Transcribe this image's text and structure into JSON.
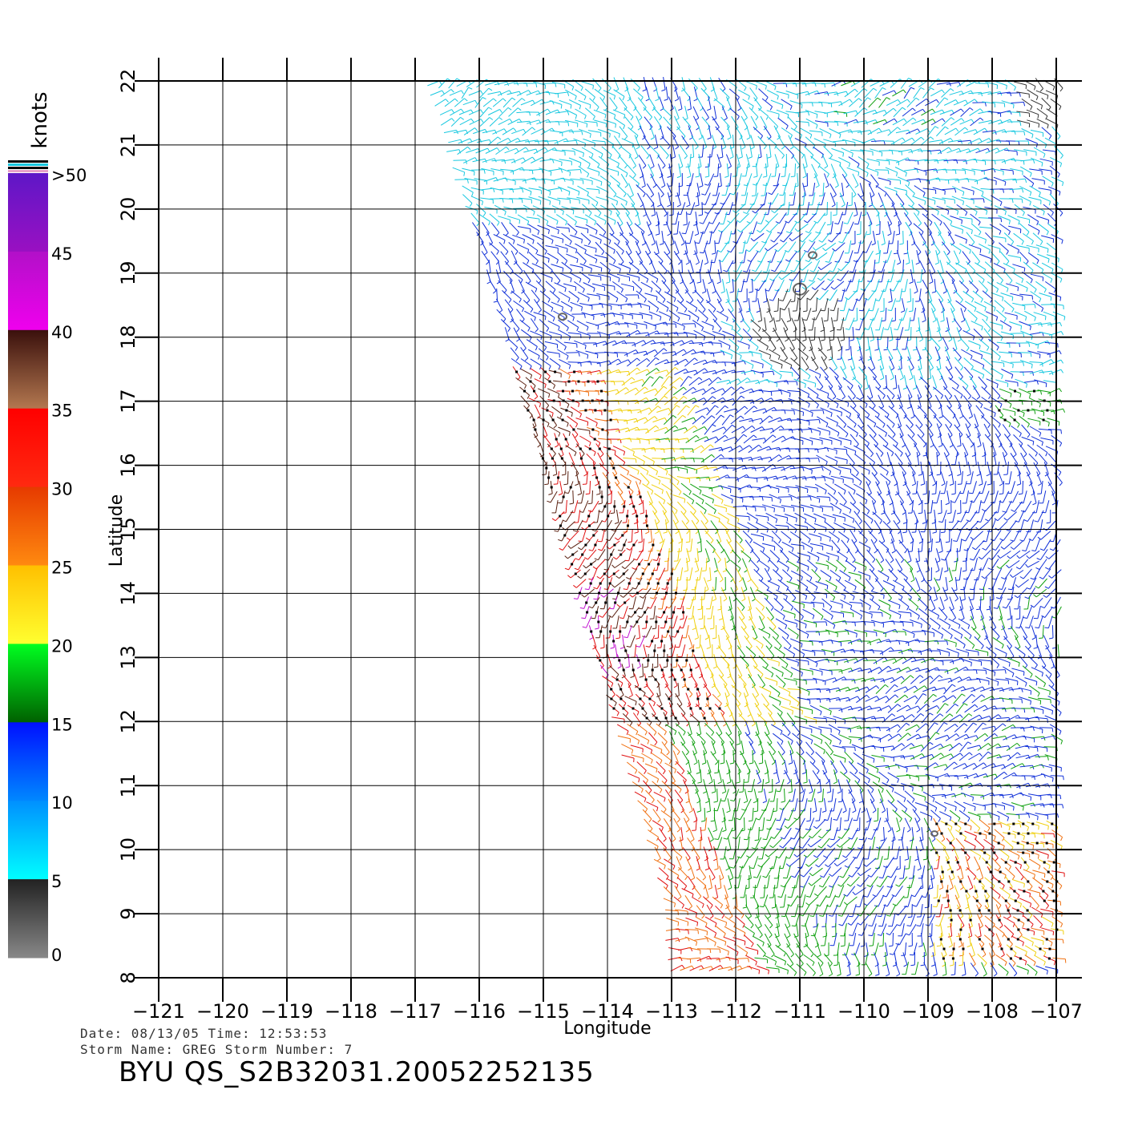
{
  "map": {
    "lon_ticks": [
      -121,
      -120,
      -119,
      -118,
      -117,
      -116,
      -115,
      -114,
      -113,
      -112,
      -111,
      -110,
      -109,
      -108,
      -107
    ],
    "lat_ticks": [
      8,
      9,
      10,
      11,
      12,
      13,
      14,
      15,
      16,
      17,
      18,
      19,
      20,
      21,
      22
    ],
    "x_axis_label": "Longitude",
    "y_axis_label": "Latitude",
    "extent": {
      "lon": [
        -121,
        -107
      ],
      "lat": [
        8,
        22
      ]
    }
  },
  "legend": {
    "unit": "knots",
    "labels": [
      ">50",
      "45",
      "40",
      "35",
      "30",
      "25",
      "20",
      "15",
      "10",
      "5",
      "0"
    ],
    "stops": [
      {
        "from": 45,
        "to": 50,
        "top": "#5e17c7",
        "bottom": "#9a10c2"
      },
      {
        "from": 40,
        "to": 45,
        "top": "#b210c8",
        "bottom": "#f000ee"
      },
      {
        "from": 35,
        "to": 40,
        "top": "#3a100c",
        "bottom": "#b47850"
      },
      {
        "from": 30,
        "to": 35,
        "top": "#ff0000",
        "bottom": "#ff2a10"
      },
      {
        "from": 25,
        "to": 30,
        "top": "#e63a00",
        "bottom": "#ff8a10"
      },
      {
        "from": 20,
        "to": 25,
        "top": "#ffc000",
        "bottom": "#ffff30"
      },
      {
        "from": 15,
        "to": 20,
        "top": "#00ff20",
        "bottom": "#006000"
      },
      {
        "from": 10,
        "to": 15,
        "top": "#0010ff",
        "bottom": "#0088ff"
      },
      {
        "from": 5,
        "to": 10,
        "top": "#0090ff",
        "bottom": "#00ffff"
      },
      {
        "from": 0,
        "to": 5,
        "top": "#222222",
        "bottom": "#888888"
      }
    ]
  },
  "info": {
    "date_line": "Date: 08/13/05   Time: 12:53:53",
    "storm_line": "Storm Name: GREG   Storm Number: 7",
    "title": "BYU QS_S2B32031.20052252135"
  },
  "colors": {
    "wind_0_5": "#333333",
    "wind_5_10": "#18c8e0",
    "wind_10_15": "#1030d8",
    "wind_15_20": "#10a010",
    "wind_20_25": "#f0d010",
    "wind_25_30": "#f07010",
    "wind_30_35": "#e01010",
    "wind_35_40": "#5a2010",
    "wind_40_45": "#c010d0",
    "islands": "#666666",
    "grid": "#000000"
  }
}
